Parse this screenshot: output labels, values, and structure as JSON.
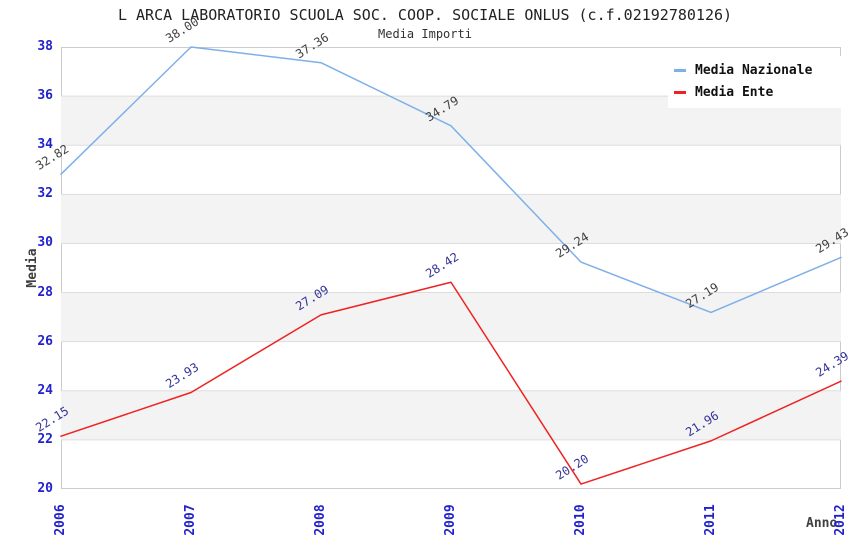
{
  "header": {
    "title": "L ARCA LABORATORIO SCUOLA SOC. COOP. SOCIALE ONLUS (c.f.02192780126)",
    "subtitle": "Media Importi"
  },
  "chart_data": {
    "type": "line",
    "x": [
      "2006",
      "2007",
      "2008",
      "2009",
      "2010",
      "2011",
      "2012"
    ],
    "series": [
      {
        "name": "Media Nazionale",
        "color": "#7db0e8",
        "label_color": "#404040",
        "values": [
          32.82,
          38.0,
          37.36,
          34.79,
          29.24,
          27.19,
          29.43
        ]
      },
      {
        "name": "Media Ente",
        "color": "#ee2222",
        "label_color": "#333399",
        "values": [
          22.15,
          23.93,
          27.09,
          28.42,
          20.2,
          21.96,
          24.39
        ]
      }
    ],
    "xlabel": "Anno",
    "ylabel": "Media",
    "ylim": [
      20,
      38
    ],
    "ytick_step": 2,
    "legend_position": "top-right",
    "grid": "horizontal-lines-with-alternating-bands",
    "tick_color": "#2222cc",
    "band_color": "#f3f3f3",
    "gridline_color": "#dddddd",
    "plot_border_color": "#cccccc"
  }
}
